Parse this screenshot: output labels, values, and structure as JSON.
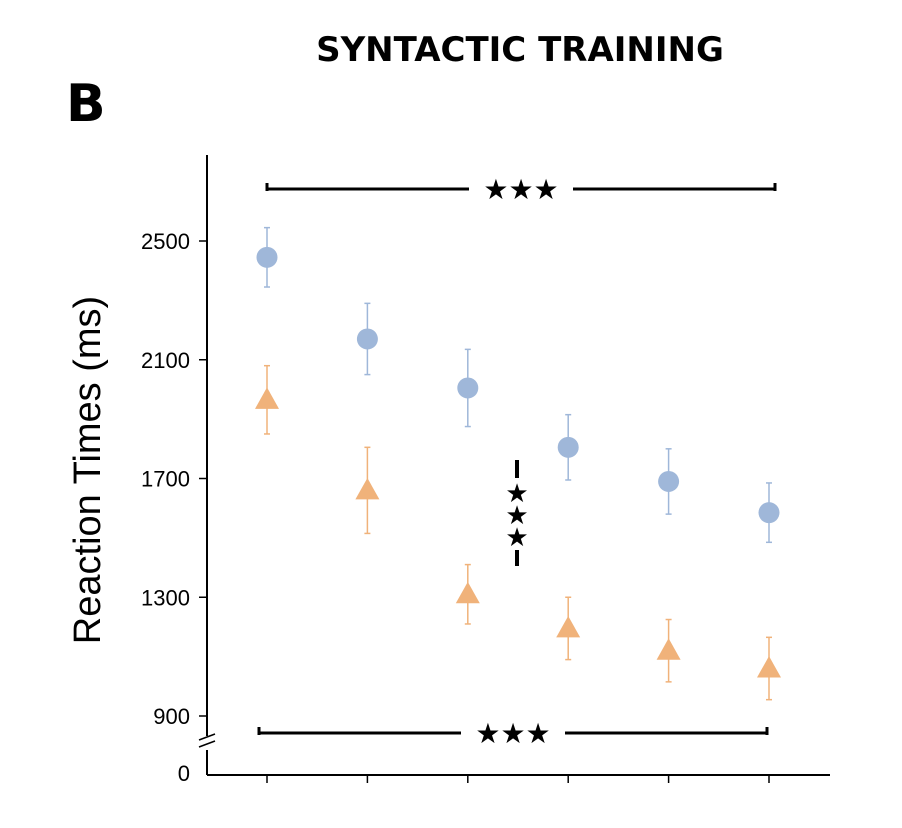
{
  "chart_data": {
    "type": "scatter",
    "title": "SYNTACTIC TRAINING",
    "panel_label": "B",
    "ylabel": "Reaction Times (ms)",
    "xlabel": "",
    "x": [
      1,
      2,
      3,
      4,
      5,
      6
    ],
    "ylim": [
      900,
      2700
    ],
    "y_axis_break": true,
    "y_ticks": [
      "2500",
      "2100",
      "1700",
      "1300",
      "900",
      "0"
    ],
    "series": [
      {
        "marker": "circle",
        "color": "#9fb7d9",
        "values": [
          2445,
          2170,
          2005,
          1805,
          1690,
          1585
        ],
        "errors": [
          100,
          120,
          130,
          110,
          110,
          100
        ]
      },
      {
        "marker": "triangle",
        "color": "#f0b27a",
        "values": [
          1965,
          1660,
          1310,
          1195,
          1120,
          1060
        ],
        "errors": [
          115,
          145,
          100,
          105,
          105,
          105
        ]
      }
    ],
    "significance": [
      {
        "label": "★★★",
        "position": "top",
        "spans": [
          1,
          6
        ]
      },
      {
        "label": "★★★",
        "position": "bottom",
        "spans": [
          1,
          6
        ]
      },
      {
        "label": "★★★",
        "position": "middle-vertical"
      }
    ],
    "grid": false
  }
}
